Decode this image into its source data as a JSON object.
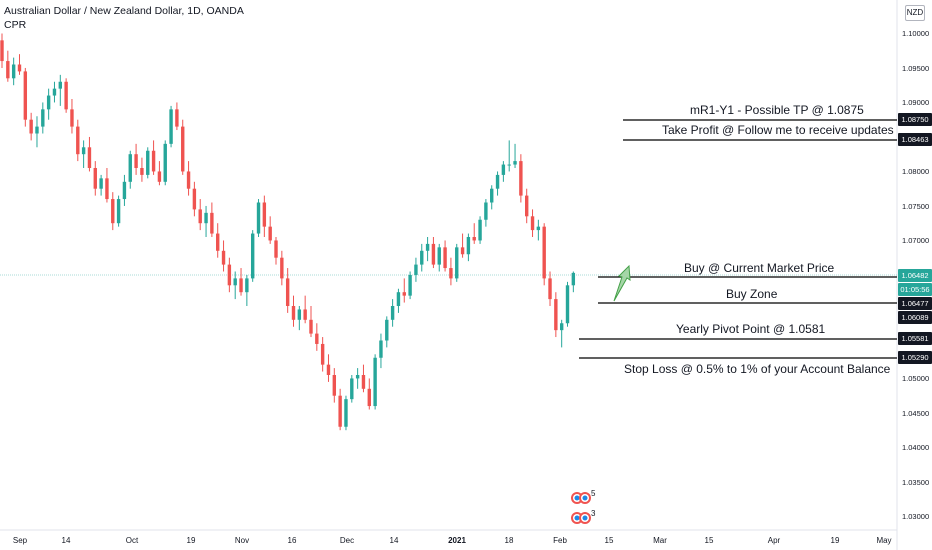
{
  "header": {
    "title": "Australian Dollar / New Zealand Dollar, 1D, OANDA",
    "indicator": "CPR",
    "currency": "NZD"
  },
  "price_axis": {
    "ticks": [
      "1.10000",
      "1.09500",
      "1.09000",
      "1.08000",
      "1.07500",
      "1.07000",
      "1.05000",
      "1.04500",
      "1.04000",
      "1.03500",
      "1.03000"
    ],
    "labels": [
      {
        "text": "1.08750",
        "style": "black"
      },
      {
        "text": "1.08463",
        "style": "black"
      },
      {
        "text": "1.06482",
        "style": "green"
      },
      {
        "text": "01:05:56",
        "style": "green"
      },
      {
        "text": "1.06477",
        "style": "black"
      },
      {
        "text": "1.06089",
        "style": "black"
      },
      {
        "text": "1.05581",
        "style": "black"
      },
      {
        "text": "1.05290",
        "style": "black"
      }
    ]
  },
  "time_axis": {
    "ticks": [
      {
        "label": "Sep",
        "bold": false
      },
      {
        "label": "14",
        "bold": false
      },
      {
        "label": "Oct",
        "bold": false
      },
      {
        "label": "19",
        "bold": false
      },
      {
        "label": "Nov",
        "bold": false
      },
      {
        "label": "16",
        "bold": false
      },
      {
        "label": "Dec",
        "bold": false
      },
      {
        "label": "14",
        "bold": false
      },
      {
        "label": "2021",
        "bold": true
      },
      {
        "label": "18",
        "bold": false
      },
      {
        "label": "Feb",
        "bold": false
      },
      {
        "label": "15",
        "bold": false
      },
      {
        "label": "Mar",
        "bold": false
      },
      {
        "label": "15",
        "bold": false
      },
      {
        "label": "Apr",
        "bold": false
      },
      {
        "label": "19",
        "bold": false
      },
      {
        "label": "May",
        "bold": false
      }
    ]
  },
  "annotations": {
    "tp": "mR1-Y1 - Possible TP @ 1.0875",
    "follow": "Take Profit @ Follow me to receive updates",
    "buy": "Buy @ Current Market Price",
    "zone": "Buy Zone",
    "pivot": "Yearly Pivot Point @ 1.0581",
    "stop": "Stop Loss @ 0.5% to 1% of your Account Balance"
  },
  "events": {
    "count_top": "5",
    "count_bottom": "3"
  },
  "colors": {
    "up": "#26a69a",
    "down": "#ef5350",
    "price_line": "#26a69a",
    "arrow": "#66bb6a"
  },
  "chart_data": {
    "type": "candlestick",
    "series_start": "Sep",
    "ohlc": [
      [
        1.0985,
        1.0995,
        1.0945,
        1.0955
      ],
      [
        1.0955,
        1.097,
        1.0925,
        1.093
      ],
      [
        1.093,
        1.096,
        1.092,
        1.095
      ],
      [
        1.095,
        1.0965,
        1.0935,
        1.094
      ],
      [
        1.094,
        1.0945,
        1.086,
        1.087
      ],
      [
        1.087,
        1.088,
        1.084,
        1.085
      ],
      [
        1.085,
        1.0875,
        1.083,
        1.086
      ],
      [
        1.086,
        1.0895,
        1.085,
        1.0885
      ],
      [
        1.0885,
        1.0915,
        1.087,
        1.0905
      ],
      [
        1.0905,
        1.0925,
        1.0895,
        1.0915
      ],
      [
        1.0915,
        1.0935,
        1.089,
        1.0925
      ],
      [
        1.0925,
        1.093,
        1.088,
        1.0885
      ],
      [
        1.0885,
        1.09,
        1.085,
        1.086
      ],
      [
        1.086,
        1.087,
        1.081,
        1.082
      ],
      [
        1.082,
        1.084,
        1.08,
        1.083
      ],
      [
        1.083,
        1.0845,
        1.0795,
        1.08
      ],
      [
        1.08,
        1.081,
        1.076,
        1.077
      ],
      [
        1.077,
        1.079,
        1.076,
        1.0785
      ],
      [
        1.0785,
        1.08,
        1.075,
        1.0755
      ],
      [
        1.0755,
        1.0765,
        1.071,
        1.072
      ],
      [
        1.072,
        1.076,
        1.0715,
        1.0755
      ],
      [
        1.0755,
        1.079,
        1.0745,
        1.078
      ],
      [
        1.078,
        1.0825,
        1.077,
        1.082
      ],
      [
        1.082,
        1.0835,
        1.079,
        1.08
      ],
      [
        1.08,
        1.0815,
        1.078,
        1.079
      ],
      [
        1.079,
        1.083,
        1.0785,
        1.0825
      ],
      [
        1.0825,
        1.084,
        1.079,
        1.0795
      ],
      [
        1.0795,
        1.081,
        1.0775,
        1.078
      ],
      [
        1.078,
        1.084,
        1.0775,
        1.0835
      ],
      [
        1.0835,
        1.089,
        1.083,
        1.0885
      ],
      [
        1.0885,
        1.0895,
        1.0855,
        1.086
      ],
      [
        1.086,
        1.087,
        1.079,
        1.0795
      ],
      [
        1.0795,
        1.081,
        1.076,
        1.077
      ],
      [
        1.077,
        1.078,
        1.073,
        1.074
      ],
      [
        1.074,
        1.0755,
        1.071,
        1.072
      ],
      [
        1.072,
        1.0745,
        1.07,
        1.0735
      ],
      [
        1.0735,
        1.075,
        1.07,
        1.0705
      ],
      [
        1.0705,
        1.072,
        1.067,
        1.068
      ],
      [
        1.068,
        1.0695,
        1.065,
        1.066
      ],
      [
        1.066,
        1.067,
        1.062,
        1.063
      ],
      [
        1.063,
        1.065,
        1.061,
        1.064
      ],
      [
        1.064,
        1.0655,
        1.0615,
        1.062
      ],
      [
        1.062,
        1.0645,
        1.06,
        1.064
      ],
      [
        1.064,
        1.071,
        1.0635,
        1.0705
      ],
      [
        1.0705,
        1.0755,
        1.07,
        1.075
      ],
      [
        1.075,
        1.076,
        1.07,
        1.0715
      ],
      [
        1.0715,
        1.073,
        1.069,
        1.0695
      ],
      [
        1.0695,
        1.07,
        1.066,
        1.067
      ],
      [
        1.067,
        1.068,
        1.063,
        1.064
      ],
      [
        1.064,
        1.0655,
        1.059,
        1.06
      ],
      [
        1.06,
        1.0615,
        1.057,
        1.058
      ],
      [
        1.058,
        1.06,
        1.0565,
        1.0595
      ],
      [
        1.0595,
        1.0615,
        1.0575,
        1.058
      ],
      [
        1.058,
        1.06,
        1.0555,
        1.056
      ],
      [
        1.056,
        1.0575,
        1.0535,
        1.0545
      ],
      [
        1.0545,
        1.0555,
        1.0505,
        1.0515
      ],
      [
        1.0515,
        1.053,
        1.049,
        1.05
      ],
      [
        1.05,
        1.051,
        1.046,
        1.047
      ],
      [
        1.047,
        1.048,
        1.042,
        1.0425
      ],
      [
        1.0425,
        1.047,
        1.042,
        1.0465
      ],
      [
        1.0465,
        1.05,
        1.046,
        1.0495
      ],
      [
        1.0495,
        1.051,
        1.048,
        1.05
      ],
      [
        1.05,
        1.0515,
        1.0475,
        1.048
      ],
      [
        1.048,
        1.0495,
        1.045,
        1.0455
      ],
      [
        1.0455,
        1.053,
        1.045,
        1.0525
      ],
      [
        1.0525,
        1.056,
        1.051,
        1.055
      ],
      [
        1.055,
        1.0585,
        1.054,
        1.058
      ],
      [
        1.058,
        1.061,
        1.057,
        1.06
      ],
      [
        1.06,
        1.0625,
        1.059,
        1.062
      ],
      [
        1.062,
        1.064,
        1.0605,
        1.0615
      ],
      [
        1.0615,
        1.065,
        1.061,
        1.0645
      ],
      [
        1.0645,
        1.067,
        1.0635,
        1.066
      ],
      [
        1.066,
        1.069,
        1.065,
        1.068
      ],
      [
        1.068,
        1.07,
        1.0665,
        1.069
      ],
      [
        1.069,
        1.07,
        1.0655,
        1.066
      ],
      [
        1.066,
        1.069,
        1.065,
        1.0685
      ],
      [
        1.0685,
        1.0695,
        1.065,
        1.0655
      ],
      [
        1.0655,
        1.067,
        1.063,
        1.064
      ],
      [
        1.064,
        1.069,
        1.0635,
        1.0685
      ],
      [
        1.0685,
        1.0705,
        1.067,
        1.0675
      ],
      [
        1.0675,
        1.0705,
        1.0665,
        1.07
      ],
      [
        1.07,
        1.072,
        1.069,
        1.0695
      ],
      [
        1.0695,
        1.073,
        1.069,
        1.0725
      ],
      [
        1.0725,
        1.0755,
        1.0715,
        1.075
      ],
      [
        1.075,
        1.0775,
        1.074,
        1.077
      ],
      [
        1.077,
        1.0795,
        1.076,
        1.079
      ],
      [
        1.079,
        1.081,
        1.078,
        1.0805
      ],
      [
        1.0805,
        1.084,
        1.0795,
        1.0805
      ],
      [
        1.0805,
        1.0835,
        1.08,
        1.081
      ],
      [
        1.081,
        1.082,
        1.075,
        1.076
      ],
      [
        1.076,
        1.077,
        1.072,
        1.073
      ],
      [
        1.073,
        1.074,
        1.07,
        1.071
      ],
      [
        1.071,
        1.0725,
        1.0695,
        1.0715
      ],
      [
        1.0715,
        1.072,
        1.063,
        1.064
      ],
      [
        1.064,
        1.065,
        1.06,
        1.061
      ],
      [
        1.061,
        1.062,
        1.0555,
        1.0565
      ],
      [
        1.0565,
        1.058,
        1.054,
        1.0575
      ],
      [
        1.0575,
        1.0635,
        1.057,
        1.063
      ],
      [
        1.063,
        1.065,
        1.062,
        1.0648
      ]
    ]
  }
}
